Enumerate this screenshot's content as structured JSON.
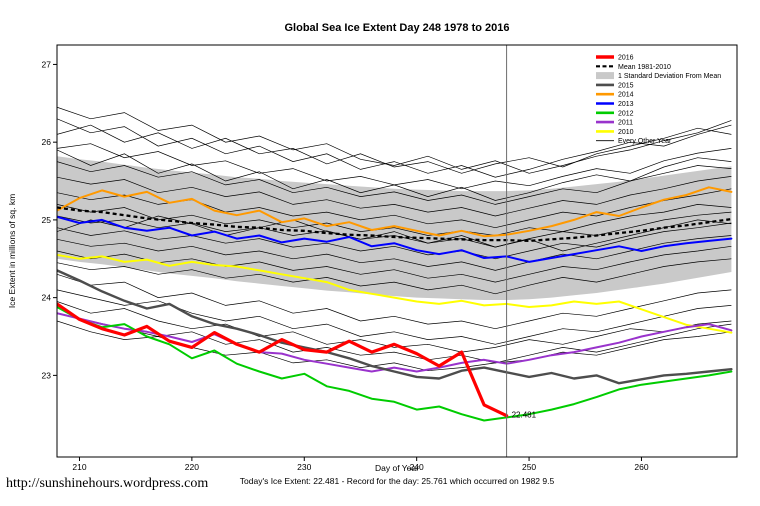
{
  "footer": {
    "url": "http://sunshinehours.wordpress.com",
    "summary": "Today's Ice Extent: 22.481  - Record for the day: 25.761 which occurred on 1982 9.5"
  },
  "chart_data": {
    "type": "line",
    "title": "Global Sea Ice Extent Day 248 1978 to 2016",
    "xlabel": "Day of Year",
    "ylabel": "Ice Extent in millions of sq. km",
    "xlim": [
      208,
      268.5
    ],
    "ylim": [
      21.95,
      27.25
    ],
    "xticks": [
      210,
      220,
      230,
      240,
      250,
      260
    ],
    "yticks": [
      23,
      24,
      25,
      26,
      27
    ],
    "vline_x": 248,
    "annotation": {
      "x": 248,
      "y": 22.481,
      "text": "22.481",
      "color": "#ff0000"
    },
    "x": [
      208,
      210,
      212,
      214,
      216,
      218,
      220,
      222,
      224,
      226,
      228,
      230,
      232,
      234,
      236,
      238,
      240,
      242,
      244,
      246,
      248,
      250,
      252,
      254,
      256,
      258,
      260,
      262,
      264,
      266,
      268
    ],
    "band": {
      "name": "1 Standard Deviation From Mean",
      "color": "#c9c9c9",
      "upper": [
        25.82,
        25.78,
        25.75,
        25.71,
        25.67,
        25.64,
        25.61,
        25.58,
        25.55,
        25.53,
        25.5,
        25.48,
        25.46,
        25.44,
        25.42,
        25.4,
        25.39,
        25.38,
        25.37,
        25.37,
        25.37,
        25.38,
        25.4,
        25.43,
        25.46,
        25.49,
        25.53,
        25.57,
        25.61,
        25.65,
        25.69
      ],
      "lower": [
        24.5,
        24.46,
        24.43,
        24.39,
        24.35,
        24.31,
        24.28,
        24.25,
        24.21,
        24.18,
        24.15,
        24.12,
        24.09,
        24.07,
        24.04,
        24.02,
        24.0,
        23.99,
        23.98,
        23.97,
        23.97,
        23.98,
        24.0,
        24.03,
        24.06,
        24.1,
        24.14,
        24.18,
        24.23,
        24.28,
        24.33
      ]
    },
    "mean": {
      "name": "Mean 1981-2010",
      "color": "#000000",
      "dash": true,
      "values": [
        25.16,
        25.12,
        25.1,
        25.06,
        25.02,
        24.99,
        24.96,
        24.94,
        24.91,
        24.9,
        24.87,
        24.86,
        24.83,
        24.81,
        24.8,
        24.78,
        24.77,
        24.76,
        24.75,
        24.74,
        24.74,
        24.73,
        24.75,
        24.77,
        24.8,
        24.83,
        24.86,
        24.9,
        24.93,
        24.97,
        25.01
      ]
    },
    "series": [
      {
        "name": "2010",
        "color": "#ffff00",
        "width": 2,
        "values": [
          24.55,
          24.5,
          24.53,
          24.46,
          24.49,
          24.41,
          24.46,
          24.42,
          24.4,
          24.35,
          24.3,
          24.25,
          24.2,
          24.1,
          24.05,
          24.0,
          23.95,
          23.92,
          23.96,
          23.9,
          23.92,
          23.88,
          23.9,
          23.95,
          23.92,
          23.95,
          23.85,
          23.75,
          23.65,
          23.6,
          23.55
        ]
      },
      {
        "name": "2011",
        "color": "#9933cc",
        "width": 2,
        "values": [
          23.8,
          23.73,
          23.66,
          23.6,
          23.56,
          23.5,
          23.43,
          23.53,
          23.4,
          23.3,
          23.28,
          23.2,
          23.15,
          23.1,
          23.05,
          23.1,
          23.05,
          23.1,
          23.16,
          23.2,
          23.15,
          23.2,
          23.26,
          23.3,
          23.36,
          23.42,
          23.5,
          23.56,
          23.62,
          23.66,
          23.58
        ]
      },
      {
        "name": "2012",
        "color": "#00cc00",
        "width": 2,
        "values": [
          23.88,
          23.72,
          23.62,
          23.66,
          23.5,
          23.4,
          23.22,
          23.32,
          23.15,
          23.05,
          22.96,
          23.02,
          22.86,
          22.8,
          22.7,
          22.66,
          22.56,
          22.6,
          22.5,
          22.42,
          22.46,
          22.5,
          22.56,
          22.63,
          22.72,
          22.82,
          22.88,
          22.92,
          22.96,
          23.0,
          23.05
        ]
      },
      {
        "name": "2013",
        "color": "#0000ff",
        "width": 2,
        "values": [
          25.04,
          24.96,
          25.0,
          24.9,
          24.86,
          24.9,
          24.8,
          24.85,
          24.76,
          24.8,
          24.71,
          24.76,
          24.72,
          24.78,
          24.66,
          24.7,
          24.61,
          24.56,
          24.61,
          24.51,
          24.53,
          24.46,
          24.51,
          24.56,
          24.61,
          24.66,
          24.6,
          24.66,
          24.7,
          24.73,
          24.76
        ]
      },
      {
        "name": "2014",
        "color": "#ff9900",
        "width": 2,
        "values": [
          25.12,
          25.28,
          25.38,
          25.3,
          25.36,
          25.22,
          25.27,
          25.12,
          25.06,
          25.12,
          24.97,
          25.02,
          24.92,
          24.97,
          24.87,
          24.92,
          24.86,
          24.8,
          24.86,
          24.79,
          24.81,
          24.86,
          24.92,
          25.0,
          25.1,
          25.05,
          25.16,
          25.26,
          25.32,
          25.42,
          25.36
        ]
      },
      {
        "name": "2015",
        "color": "#4d4d4d",
        "width": 2.4,
        "values": [
          24.35,
          24.22,
          24.08,
          23.96,
          23.86,
          23.92,
          23.76,
          23.66,
          23.6,
          23.52,
          23.42,
          23.36,
          23.3,
          23.22,
          23.12,
          23.05,
          22.98,
          22.96,
          23.06,
          23.1,
          23.04,
          22.98,
          23.03,
          22.96,
          23.0,
          22.9,
          22.95,
          23.0,
          23.02,
          23.05,
          23.08
        ]
      },
      {
        "name": "2016",
        "color": "#ff0000",
        "width": 3.2,
        "x": [
          208,
          210,
          212,
          214,
          216,
          218,
          220,
          222,
          224,
          226,
          228,
          230,
          232,
          234,
          236,
          238,
          240,
          242,
          244,
          246,
          248
        ],
        "values": [
          23.92,
          23.72,
          23.6,
          23.52,
          23.63,
          23.44,
          23.36,
          23.55,
          23.4,
          23.3,
          23.46,
          23.33,
          23.3,
          23.44,
          23.3,
          23.4,
          23.28,
          23.12,
          23.3,
          22.62,
          22.481
        ]
      }
    ],
    "other_years": {
      "name": "Every Other Year",
      "color": "#000000",
      "width": 0.7,
      "x": [
        208,
        211,
        214,
        217,
        220,
        223,
        226,
        229,
        232,
        235,
        238,
        241,
        244,
        247,
        250,
        253,
        256,
        259,
        262,
        265,
        268
      ],
      "series": [
        [
          26.1,
          26.22,
          26.0,
          26.12,
          25.92,
          26.05,
          25.85,
          25.92,
          25.72,
          25.85,
          25.68,
          25.75,
          25.6,
          25.72,
          25.8,
          25.68,
          25.85,
          25.95,
          26.05,
          26.18,
          26.1
        ],
        [
          26.45,
          26.3,
          26.38,
          26.15,
          26.22,
          26.0,
          26.08,
          25.9,
          25.98,
          25.78,
          25.7,
          25.82,
          25.65,
          25.76,
          25.6,
          25.7,
          25.82,
          25.9,
          26.02,
          26.12,
          26.28
        ],
        [
          26.3,
          26.12,
          26.2,
          25.95,
          26.05,
          25.85,
          25.95,
          25.75,
          25.85,
          25.65,
          25.75,
          25.6,
          25.7,
          25.55,
          25.65,
          25.78,
          25.88,
          26.0,
          25.95,
          26.1,
          26.22
        ],
        [
          25.9,
          25.7,
          25.85,
          25.6,
          25.72,
          25.5,
          25.62,
          25.4,
          25.52,
          25.35,
          25.45,
          25.3,
          25.42,
          25.25,
          25.35,
          25.48,
          25.58,
          25.5,
          25.68,
          25.8,
          25.75
        ],
        [
          25.92,
          25.98,
          25.8,
          25.88,
          25.7,
          25.76,
          25.6,
          25.66,
          25.5,
          25.56,
          25.45,
          25.52,
          25.4,
          25.5,
          25.44,
          25.56,
          25.66,
          25.6,
          25.76,
          25.86,
          25.92
        ],
        [
          25.75,
          25.62,
          25.7,
          25.55,
          25.62,
          25.45,
          25.52,
          25.35,
          25.42,
          25.3,
          25.36,
          25.25,
          25.32,
          25.2,
          25.3,
          25.4,
          25.35,
          25.5,
          25.6,
          25.7,
          25.66
        ],
        [
          25.55,
          25.46,
          25.52,
          25.35,
          25.42,
          25.3,
          25.36,
          25.2,
          25.26,
          25.15,
          25.2,
          25.1,
          25.16,
          25.05,
          25.15,
          25.25,
          25.2,
          25.32,
          25.4,
          25.5,
          25.56
        ],
        [
          25.35,
          25.26,
          25.32,
          25.2,
          25.26,
          25.1,
          25.16,
          25.05,
          25.1,
          25.0,
          25.06,
          24.95,
          25.0,
          24.9,
          25.0,
          25.1,
          25.05,
          25.16,
          25.25,
          25.32,
          25.4
        ],
        [
          25.2,
          25.1,
          25.16,
          25.0,
          25.06,
          24.95,
          25.0,
          24.9,
          24.96,
          24.85,
          24.9,
          24.8,
          24.86,
          24.8,
          24.9,
          24.85,
          24.96,
          25.05,
          25.1,
          25.2,
          25.16
        ],
        [
          24.85,
          25.0,
          24.9,
          25.05,
          24.95,
          24.8,
          24.9,
          25.0,
          24.85,
          24.75,
          24.85,
          24.7,
          24.8,
          24.65,
          24.75,
          24.6,
          24.7,
          24.8,
          24.9,
          25.0,
          24.95
        ],
        [
          25.05,
          24.96,
          25.0,
          24.9,
          24.96,
          24.85,
          24.9,
          24.8,
          24.86,
          24.75,
          24.8,
          24.7,
          24.76,
          24.65,
          24.76,
          24.85,
          24.8,
          24.9,
          25.0,
          25.06,
          25.1
        ],
        [
          24.9,
          24.8,
          24.86,
          24.75,
          24.8,
          24.7,
          24.76,
          24.65,
          24.7,
          24.6,
          24.66,
          24.55,
          24.6,
          24.5,
          24.6,
          24.7,
          24.65,
          24.76,
          24.85,
          24.9,
          24.96
        ],
        [
          24.75,
          24.66,
          24.7,
          24.6,
          24.66,
          24.55,
          24.6,
          24.5,
          24.56,
          24.45,
          24.5,
          24.4,
          24.46,
          24.35,
          24.46,
          24.56,
          24.5,
          24.6,
          24.7,
          24.76,
          24.8
        ],
        [
          24.6,
          24.5,
          24.56,
          24.45,
          24.5,
          24.4,
          24.46,
          24.35,
          24.4,
          24.3,
          24.36,
          24.25,
          24.3,
          24.2,
          24.3,
          24.4,
          24.36,
          24.46,
          24.55,
          24.6,
          24.66
        ],
        [
          24.45,
          24.36,
          24.4,
          24.3,
          24.36,
          24.25,
          24.3,
          24.2,
          24.26,
          24.15,
          24.2,
          24.1,
          24.16,
          24.05,
          24.16,
          24.26,
          24.2,
          24.3,
          24.4,
          24.46,
          24.5
        ],
        [
          24.3,
          24.16,
          24.2,
          24.0,
          24.06,
          23.9,
          23.96,
          23.8,
          23.86,
          23.7,
          23.76,
          23.66,
          23.7,
          23.6,
          23.7,
          23.8,
          23.76,
          23.86,
          23.96,
          24.06,
          24.1
        ],
        [
          24.1,
          24.0,
          23.9,
          23.96,
          23.8,
          23.7,
          23.76,
          23.6,
          23.66,
          23.5,
          23.56,
          23.46,
          23.5,
          23.4,
          23.5,
          23.6,
          23.56,
          23.66,
          23.76,
          23.86,
          23.9
        ],
        [
          23.95,
          23.8,
          23.86,
          23.7,
          23.6,
          23.66,
          23.5,
          23.56,
          23.4,
          23.46,
          23.36,
          23.4,
          23.3,
          23.36,
          23.46,
          23.4,
          23.5,
          23.6,
          23.56,
          23.66,
          23.7
        ],
        [
          23.8,
          23.7,
          23.6,
          23.5,
          23.56,
          23.4,
          23.46,
          23.3,
          23.36,
          23.26,
          23.3,
          23.2,
          23.26,
          23.16,
          23.26,
          23.36,
          23.3,
          23.4,
          23.5,
          23.6,
          23.66
        ],
        [
          23.7,
          23.56,
          23.46,
          23.5,
          23.36,
          23.26,
          23.3,
          23.16,
          23.2,
          23.1,
          23.16,
          23.06,
          23.1,
          23.16,
          23.2,
          23.3,
          23.26,
          23.36,
          23.46,
          23.5,
          23.56
        ]
      ]
    },
    "legend": [
      {
        "label": "2016",
        "color": "#ff0000",
        "lw": 3.5
      },
      {
        "label": "Mean 1981-2010",
        "color": "#000000",
        "lw": 2.2,
        "dash": true
      },
      {
        "label": "1 Standard Deviation From Mean",
        "color": "#c9c9c9",
        "lw": 8,
        "band": true
      },
      {
        "label": "2015",
        "color": "#4d4d4d",
        "lw": 2.6
      },
      {
        "label": "2014",
        "color": "#ff9900",
        "lw": 2.6
      },
      {
        "label": "2013",
        "color": "#0000ff",
        "lw": 2.6
      },
      {
        "label": "2012",
        "color": "#00cc00",
        "lw": 2.6
      },
      {
        "label": "2011",
        "color": "#9933cc",
        "lw": 2.6
      },
      {
        "label": "2010",
        "color": "#ffff00",
        "lw": 2.6
      },
      {
        "label": "Every Other Year",
        "color": "#000000",
        "lw": 0.8
      }
    ]
  }
}
